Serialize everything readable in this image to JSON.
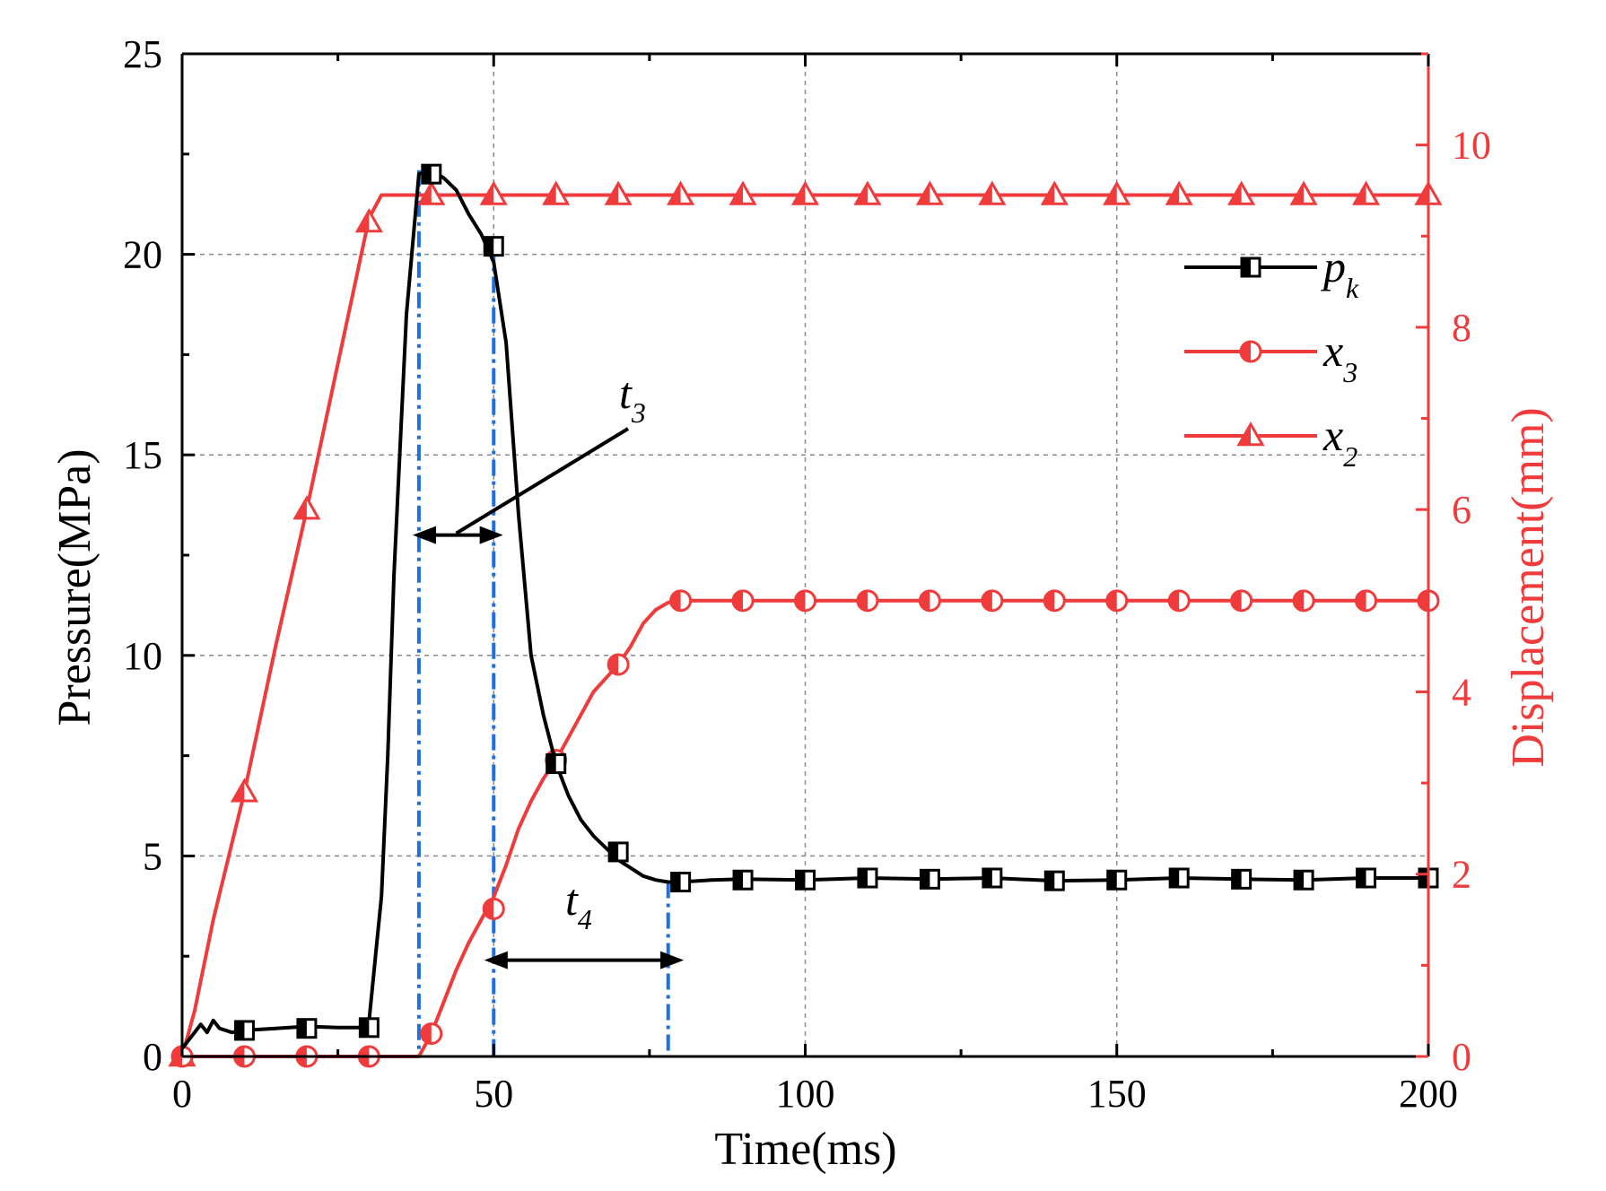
{
  "chart_data": {
    "type": "line",
    "title": "",
    "xlabel": "Time(ms)",
    "ylabel_left": "Pressure(MPa)",
    "ylabel_right": "Displacement(mm)",
    "xlim": [
      0,
      200
    ],
    "ylim_left": [
      0,
      25
    ],
    "ylim_right": [
      0,
      11
    ],
    "x_ticks": [
      "0",
      "50",
      "100",
      "150",
      "200"
    ],
    "y_left_ticks": [
      "0",
      "5",
      "10",
      "15",
      "20",
      "25"
    ],
    "y_right_ticks": [
      "0",
      "2",
      "4",
      "6",
      "8",
      "10"
    ],
    "grid": true,
    "colors": {
      "pressure": "#000000",
      "displacement": "#ef3b3b",
      "guides": "#1f6fe0"
    },
    "series": [
      {
        "name": "p_k",
        "legend_base": "p",
        "legend_sub": "k",
        "axis": "left",
        "marker": "square-half",
        "x": [
          0,
          2,
          3,
          4,
          5,
          6,
          8,
          10,
          15,
          20,
          25,
          29,
          30,
          32,
          33,
          34,
          36,
          38,
          40,
          42,
          44,
          46,
          48,
          50,
          52,
          54,
          56,
          58,
          60,
          62,
          64,
          66,
          68,
          70,
          72,
          74,
          76,
          78,
          80,
          85,
          90,
          100,
          110,
          120,
          130,
          140,
          150,
          160,
          170,
          180,
          190,
          200
        ],
        "y": [
          0.2,
          0.6,
          0.8,
          0.6,
          0.9,
          0.7,
          0.6,
          0.65,
          0.7,
          0.75,
          0.72,
          0.72,
          0.9,
          4.0,
          7.5,
          12.0,
          18.5,
          22.0,
          22.1,
          21.9,
          21.6,
          21.0,
          20.5,
          19.8,
          17.8,
          13.5,
          10.0,
          8.5,
          7.3,
          6.5,
          5.9,
          5.5,
          5.2,
          4.9,
          4.7,
          4.5,
          4.4,
          4.35,
          4.35,
          4.4,
          4.42,
          4.4,
          4.45,
          4.42,
          4.45,
          4.38,
          4.4,
          4.45,
          4.42,
          4.4,
          4.45,
          4.45
        ],
        "markers_x": [
          10,
          20,
          30,
          40,
          50,
          60,
          70,
          80,
          90,
          100,
          110,
          120,
          130,
          140,
          150,
          160,
          170,
          180,
          190,
          200
        ],
        "markers_y": [
          0.65,
          0.7,
          0.72,
          22.0,
          20.2,
          7.3,
          5.1,
          4.35,
          4.4,
          4.4,
          4.45,
          4.42,
          4.45,
          4.38,
          4.4,
          4.45,
          4.42,
          4.4,
          4.45,
          4.45
        ]
      },
      {
        "name": "x_3",
        "legend_base": "x",
        "legend_sub": "3",
        "axis": "right",
        "marker": "circle-half",
        "x": [
          0,
          38,
          40,
          42,
          44,
          46,
          48,
          50,
          52,
          54,
          56,
          58,
          60,
          62,
          64,
          66,
          68,
          70,
          72,
          74,
          76,
          78,
          80,
          90,
          200
        ],
        "y": [
          0,
          0,
          0.25,
          0.6,
          0.95,
          1.25,
          1.5,
          1.75,
          2.1,
          2.5,
          2.8,
          3.05,
          3.25,
          3.5,
          3.75,
          4.0,
          4.15,
          4.3,
          4.5,
          4.75,
          4.9,
          4.98,
          5.0,
          5.0,
          5.0
        ],
        "markers_x": [
          0,
          10,
          20,
          30,
          40,
          50,
          60,
          70,
          80,
          90,
          100,
          110,
          120,
          130,
          140,
          150,
          160,
          170,
          180,
          190,
          200
        ],
        "markers_y": [
          0,
          0,
          0,
          0,
          0.25,
          1.62,
          3.25,
          4.3,
          5.0,
          5.0,
          5.0,
          5.0,
          5.0,
          5.0,
          5.0,
          5.0,
          5.0,
          5.0,
          5.0,
          5.0,
          5.0
        ]
      },
      {
        "name": "x_2",
        "legend_base": "x",
        "legend_sub": "2",
        "axis": "right",
        "marker": "triangle-half",
        "x": [
          0,
          2,
          5,
          10,
          15,
          20,
          25,
          30,
          32,
          40,
          200
        ],
        "y": [
          0,
          0.5,
          1.5,
          2.9,
          4.5,
          6.0,
          7.6,
          9.2,
          9.45,
          9.45,
          9.45
        ],
        "markers_x": [
          0,
          10,
          20,
          30,
          40,
          50,
          60,
          70,
          80,
          90,
          100,
          110,
          120,
          130,
          140,
          150,
          160,
          170,
          180,
          190,
          200
        ],
        "markers_y": [
          0,
          2.9,
          6.0,
          9.15,
          9.45,
          9.45,
          9.45,
          9.45,
          9.45,
          9.45,
          9.45,
          9.45,
          9.45,
          9.45,
          9.45,
          9.45,
          9.45,
          9.45,
          9.45,
          9.45,
          9.45
        ]
      }
    ],
    "guide_lines": [
      {
        "x": 38,
        "y_top": 22.1
      },
      {
        "x": 50,
        "y_top": 20.2
      },
      {
        "x": 78,
        "y_top": 4.35
      }
    ],
    "annotations": [
      {
        "label": "t3",
        "base": "t",
        "sub": "3",
        "arrow_from": 37,
        "arrow_to": 51.5,
        "arrow_y": 13.0
      },
      {
        "label": "t4",
        "base": "t",
        "sub": "4",
        "arrow_from": 48.5,
        "arrow_to": 80.5,
        "arrow_y": 2.4
      }
    ]
  }
}
